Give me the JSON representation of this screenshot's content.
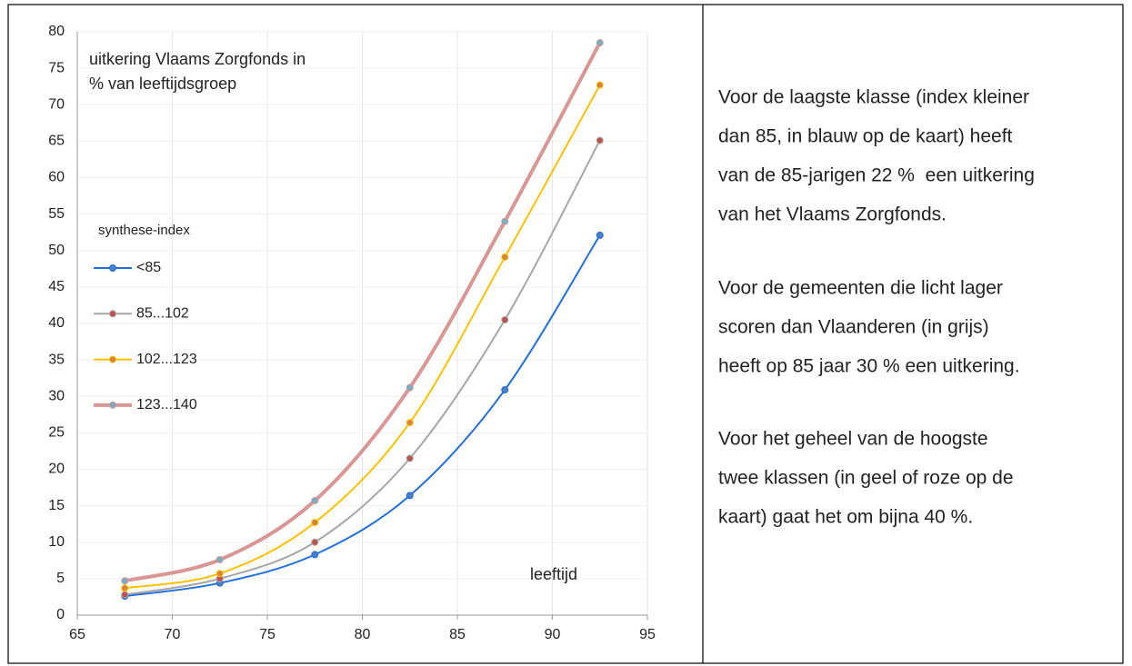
{
  "chart_data": {
    "type": "line",
    "title": [
      "uitkering Vlaams Zorgfonds in",
      "% van leeftijdsgroep"
    ],
    "x_label": "leeftijd",
    "legend_title": "synthese-index",
    "x": [
      67.5,
      72.5,
      77.5,
      82.5,
      87.5,
      92.5
    ],
    "series": [
      {
        "name": "<85",
        "color": "#1f6fe0",
        "marker_color": "#4a7fc1",
        "line_width": 2,
        "values": [
          2.6,
          4.4,
          8.3,
          16.4,
          30.9,
          52.1
        ]
      },
      {
        "name": "85...102",
        "color": "#a6a6a6",
        "marker_color": "#c0504d",
        "line_width": 2,
        "values": [
          2.8,
          5.0,
          10.0,
          21.5,
          40.5,
          65.1
        ]
      },
      {
        "name": "102...123",
        "color": "#ffc000",
        "marker_color": "#d9823b",
        "line_width": 2,
        "values": [
          3.7,
          5.7,
          12.7,
          26.4,
          49.1,
          72.7
        ]
      },
      {
        "name": "123...140",
        "color": "#d99694",
        "marker_color": "#6fb0c2",
        "line_width": 4,
        "values": [
          4.7,
          7.6,
          15.7,
          31.2,
          54.0,
          78.5
        ]
      }
    ],
    "xlim": [
      65,
      95
    ],
    "xticks": [
      65,
      70,
      75,
      80,
      85,
      90,
      95
    ],
    "ylim": [
      0,
      80
    ],
    "yticks": [
      0,
      5,
      10,
      15,
      20,
      25,
      30,
      35,
      40,
      45,
      50,
      55,
      60,
      65,
      70,
      75,
      80
    ],
    "grid": true
  },
  "paragraphs": [
    [
      "Voor de laagste klasse (index kleiner",
      "dan 85, in blauw op de kaart) heeft",
      "van de 85-jarigen 22 %  een uitkering",
      "van het Vlaams Zorgfonds."
    ],
    [
      "Voor de gemeenten die licht lager",
      "scoren dan Vlaanderen (in grijs)",
      "heeft op 85 jaar 30 % een uitkering."
    ],
    [
      "Voor het geheel van de hoogste",
      "twee klassen (in geel of roze op de",
      "kaart) gaat het om bijna 40 %."
    ]
  ]
}
